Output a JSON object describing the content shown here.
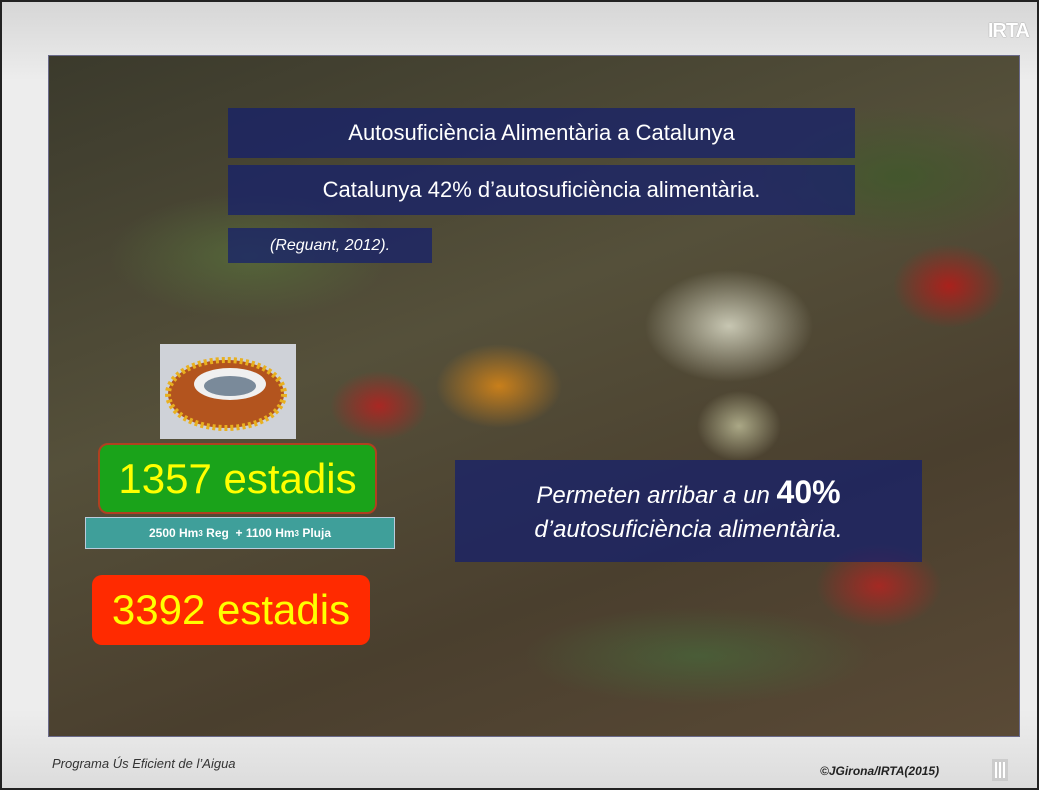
{
  "header": {
    "logo": "IRTA"
  },
  "slide": {
    "title": "Autosuficiència Alimentària a Catalunya",
    "subtitle": "Catalunya 42% d’autosuficiència alimentària.",
    "citation": "(Reguant, 2012).",
    "stadiums_1": "1357 estadis",
    "note": [
      "2500 Hm",
      "3",
      " Reg  + 1100 Hm",
      "3",
      " Pluja"
    ],
    "stadiums_2": "3392 estadis",
    "statement": [
      "Permeten arribar a un ",
      "40%",
      "d’autosuficiència alimentària."
    ]
  },
  "footer": {
    "left": "Programa Ús Eficient de l’Aigua",
    "right": "©JGirona/IRTA(2015)"
  }
}
